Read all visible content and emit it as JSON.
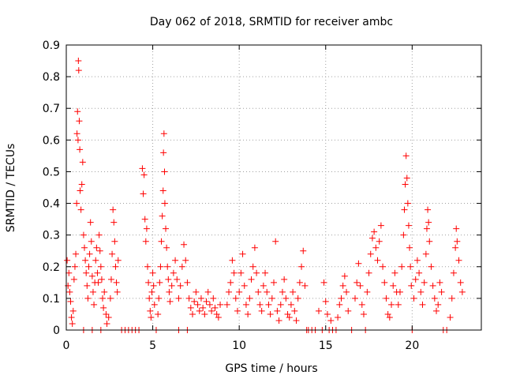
{
  "chart_data": {
    "type": "scatter",
    "title": "Day 062 of 2018, SRMTID for receiver ambc",
    "xlabel": "GPS time / hours",
    "ylabel": "SRMTID / TECUs",
    "xlim": [
      0,
      24
    ],
    "ylim": [
      0,
      0.9
    ],
    "xticks": [
      0,
      5,
      10,
      15,
      20
    ],
    "yticks": [
      0,
      0.1,
      0.2,
      0.3,
      0.4,
      0.5,
      0.6,
      0.7,
      0.8,
      0.9
    ],
    "grid": true,
    "marker": "+",
    "color": "#ff0000",
    "series": [
      {
        "name": "SRMTID",
        "points": [
          [
            0.05,
            0.22
          ],
          [
            0.1,
            0.14
          ],
          [
            0.15,
            0.18
          ],
          [
            0.2,
            0.12
          ],
          [
            0.25,
            0.09
          ],
          [
            0.3,
            0.04
          ],
          [
            0.35,
            0.02
          ],
          [
            0.4,
            0.06
          ],
          [
            0.45,
            0.16
          ],
          [
            0.5,
            0.2
          ],
          [
            0.55,
            0.24
          ],
          [
            0.6,
            0.4
          ],
          [
            0.62,
            0.62
          ],
          [
            0.65,
            0.69
          ],
          [
            0.68,
            0.6
          ],
          [
            0.7,
            0.85
          ],
          [
            0.72,
            0.82
          ],
          [
            0.75,
            0.66
          ],
          [
            0.78,
            0.57
          ],
          [
            0.8,
            0.44
          ],
          [
            0.85,
            0.38
          ],
          [
            0.9,
            0.46
          ],
          [
            0.95,
            0.53
          ],
          [
            1.0,
            0.3
          ],
          [
            1.05,
            0.26
          ],
          [
            1.1,
            0.22
          ],
          [
            1.15,
            0.18
          ],
          [
            1.2,
            0.14
          ],
          [
            1.25,
            0.1
          ],
          [
            1.3,
            0.2
          ],
          [
            1.35,
            0.24
          ],
          [
            1.4,
            0.34
          ],
          [
            1.45,
            0.28
          ],
          [
            1.5,
            0.17
          ],
          [
            1.55,
            0.12
          ],
          [
            1.6,
            0.08
          ],
          [
            1.65,
            0.15
          ],
          [
            1.7,
            0.22
          ],
          [
            1.75,
            0.26
          ],
          [
            1.8,
            0.18
          ],
          [
            1.85,
            0.15
          ],
          [
            1.9,
            0.3
          ],
          [
            1.95,
            0.25
          ],
          [
            2.0,
            0.2
          ],
          [
            2.05,
            0.16
          ],
          [
            2.1,
            0.1
          ],
          [
            2.15,
            0.07
          ],
          [
            2.2,
            0.12
          ],
          [
            2.3,
            0.05
          ],
          [
            2.35,
            0.02
          ],
          [
            2.45,
            0.04
          ],
          [
            2.55,
            0.1
          ],
          [
            2.6,
            0.16
          ],
          [
            2.65,
            0.24
          ],
          [
            2.7,
            0.38
          ],
          [
            2.75,
            0.34
          ],
          [
            2.8,
            0.28
          ],
          [
            2.85,
            0.2
          ],
          [
            2.9,
            0.15
          ],
          [
            2.95,
            0.12
          ],
          [
            3.0,
            0.22
          ],
          [
            1.0,
            0.0
          ],
          [
            1.5,
            0.0
          ],
          [
            2.0,
            0.0
          ],
          [
            3.2,
            0.0
          ],
          [
            3.4,
            0.0
          ],
          [
            3.6,
            0.0
          ],
          [
            3.8,
            0.0
          ],
          [
            4.0,
            0.0
          ],
          [
            4.2,
            0.0
          ],
          [
            4.4,
            0.51
          ],
          [
            4.45,
            0.43
          ],
          [
            4.5,
            0.49
          ],
          [
            4.55,
            0.35
          ],
          [
            4.6,
            0.28
          ],
          [
            4.65,
            0.32
          ],
          [
            4.7,
            0.2
          ],
          [
            4.75,
            0.15
          ],
          [
            4.8,
            0.1
          ],
          [
            4.85,
            0.06
          ],
          [
            4.9,
            0.04
          ],
          [
            4.95,
            0.12
          ],
          [
            5.0,
            0.18
          ],
          [
            5.05,
            0.14
          ],
          [
            5.1,
            0.08
          ],
          [
            5.2,
            0.0
          ],
          [
            5.3,
            0.05
          ],
          [
            5.35,
            0.1
          ],
          [
            5.4,
            0.15
          ],
          [
            5.45,
            0.2
          ],
          [
            5.5,
            0.28
          ],
          [
            5.55,
            0.36
          ],
          [
            5.6,
            0.44
          ],
          [
            5.62,
            0.56
          ],
          [
            5.65,
            0.62
          ],
          [
            5.68,
            0.5
          ],
          [
            5.7,
            0.4
          ],
          [
            5.75,
            0.32
          ],
          [
            5.8,
            0.26
          ],
          [
            5.85,
            0.2
          ],
          [
            5.9,
            0.16
          ],
          [
            5.95,
            0.12
          ],
          [
            6.0,
            0.09
          ],
          [
            6.1,
            0.14
          ],
          [
            6.2,
            0.18
          ],
          [
            6.3,
            0.22
          ],
          [
            6.4,
            0.16
          ],
          [
            6.5,
            0.1
          ],
          [
            6.6,
            0.14
          ],
          [
            6.7,
            0.2
          ],
          [
            6.8,
            0.27
          ],
          [
            6.9,
            0.22
          ],
          [
            7.0,
            0.15
          ],
          [
            7.1,
            0.1
          ],
          [
            7.2,
            0.07
          ],
          [
            7.3,
            0.05
          ],
          [
            7.4,
            0.09
          ],
          [
            7.5,
            0.12
          ],
          [
            7.6,
            0.08
          ],
          [
            7.7,
            0.06
          ],
          [
            7.8,
            0.1
          ],
          [
            7.9,
            0.07
          ],
          [
            8.0,
            0.05
          ],
          [
            8.1,
            0.09
          ],
          [
            8.2,
            0.12
          ],
          [
            8.3,
            0.08
          ],
          [
            8.4,
            0.06
          ],
          [
            8.5,
            0.1
          ],
          [
            8.6,
            0.07
          ],
          [
            8.7,
            0.05
          ],
          [
            8.8,
            0.04
          ],
          [
            8.9,
            0.08
          ],
          [
            6.5,
            0.0
          ],
          [
            7.0,
            0.0
          ],
          [
            9.3,
            0.08
          ],
          [
            9.4,
            0.12
          ],
          [
            9.5,
            0.15
          ],
          [
            9.6,
            0.22
          ],
          [
            9.7,
            0.18
          ],
          [
            9.8,
            0.1
          ],
          [
            9.9,
            0.06
          ],
          [
            10.0,
            0.12
          ],
          [
            10.1,
            0.18
          ],
          [
            10.2,
            0.24
          ],
          [
            10.3,
            0.14
          ],
          [
            10.4,
            0.08
          ],
          [
            10.5,
            0.05
          ],
          [
            10.6,
            0.1
          ],
          [
            10.7,
            0.16
          ],
          [
            10.8,
            0.2
          ],
          [
            10.9,
            0.26
          ],
          [
            11.0,
            0.18
          ],
          [
            11.1,
            0.12
          ],
          [
            11.2,
            0.08
          ],
          [
            11.3,
            0.06
          ],
          [
            11.4,
            0.14
          ],
          [
            11.5,
            0.18
          ],
          [
            11.6,
            0.12
          ],
          [
            11.7,
            0.08
          ],
          [
            11.8,
            0.05
          ],
          [
            11.9,
            0.1
          ],
          [
            12.0,
            0.15
          ],
          [
            12.1,
            0.28
          ],
          [
            12.2,
            0.06
          ],
          [
            12.3,
            0.03
          ],
          [
            12.4,
            0.08
          ],
          [
            12.5,
            0.12
          ],
          [
            12.6,
            0.16
          ],
          [
            12.7,
            0.1
          ],
          [
            12.8,
            0.05
          ],
          [
            12.9,
            0.04
          ],
          [
            13.0,
            0.08
          ],
          [
            13.1,
            0.12
          ],
          [
            13.2,
            0.06
          ],
          [
            13.3,
            0.03
          ],
          [
            13.4,
            0.1
          ],
          [
            13.5,
            0.15
          ],
          [
            13.6,
            0.2
          ],
          [
            13.7,
            0.25
          ],
          [
            13.8,
            0.14
          ],
          [
            13.9,
            0.0
          ],
          [
            14.0,
            0.0
          ],
          [
            14.2,
            0.0
          ],
          [
            14.4,
            0.0
          ],
          [
            14.6,
            0.06
          ],
          [
            14.8,
            0.0
          ],
          [
            14.9,
            0.15
          ],
          [
            15.0,
            0.09
          ],
          [
            15.1,
            0.05
          ],
          [
            15.2,
            0.0
          ],
          [
            15.3,
            0.03
          ],
          [
            15.4,
            0.0
          ],
          [
            15.6,
            0.0
          ],
          [
            15.7,
            0.04
          ],
          [
            15.8,
            0.08
          ],
          [
            15.9,
            0.1
          ],
          [
            16.0,
            0.14
          ],
          [
            16.1,
            0.17
          ],
          [
            16.2,
            0.12
          ],
          [
            16.3,
            0.06
          ],
          [
            16.5,
            0.0
          ],
          [
            16.7,
            0.1
          ],
          [
            16.8,
            0.15
          ],
          [
            16.9,
            0.21
          ],
          [
            17.0,
            0.14
          ],
          [
            17.1,
            0.08
          ],
          [
            17.2,
            0.05
          ],
          [
            17.3,
            0.0
          ],
          [
            17.4,
            0.12
          ],
          [
            17.5,
            0.18
          ],
          [
            17.6,
            0.24
          ],
          [
            17.7,
            0.29
          ],
          [
            17.8,
            0.31
          ],
          [
            17.9,
            0.26
          ],
          [
            18.0,
            0.22
          ],
          [
            18.1,
            0.28
          ],
          [
            18.2,
            0.33
          ],
          [
            18.3,
            0.2
          ],
          [
            18.4,
            0.15
          ],
          [
            18.5,
            0.1
          ],
          [
            18.6,
            0.05
          ],
          [
            18.7,
            0.04
          ],
          [
            18.8,
            0.08
          ],
          [
            18.9,
            0.14
          ],
          [
            19.0,
            0.18
          ],
          [
            19.1,
            0.12
          ],
          [
            19.2,
            0.08
          ],
          [
            19.3,
            0.12
          ],
          [
            19.4,
            0.2
          ],
          [
            19.5,
            0.3
          ],
          [
            19.55,
            0.38
          ],
          [
            19.6,
            0.46
          ],
          [
            19.65,
            0.55
          ],
          [
            19.7,
            0.48
          ],
          [
            19.75,
            0.4
          ],
          [
            19.8,
            0.33
          ],
          [
            19.85,
            0.26
          ],
          [
            19.9,
            0.2
          ],
          [
            19.95,
            0.14
          ],
          [
            20.0,
            0.0
          ],
          [
            20.1,
            0.1
          ],
          [
            20.2,
            0.16
          ],
          [
            20.3,
            0.22
          ],
          [
            20.4,
            0.18
          ],
          [
            20.5,
            0.12
          ],
          [
            20.6,
            0.08
          ],
          [
            20.7,
            0.15
          ],
          [
            20.8,
            0.24
          ],
          [
            20.85,
            0.32
          ],
          [
            20.9,
            0.38
          ],
          [
            20.95,
            0.34
          ],
          [
            21.0,
            0.28
          ],
          [
            21.1,
            0.2
          ],
          [
            21.2,
            0.14
          ],
          [
            21.3,
            0.1
          ],
          [
            21.4,
            0.06
          ],
          [
            21.5,
            0.08
          ],
          [
            21.6,
            0.15
          ],
          [
            21.7,
            0.12
          ],
          [
            21.8,
            0.0
          ],
          [
            22.0,
            0.0
          ],
          [
            22.2,
            0.04
          ],
          [
            22.3,
            0.1
          ],
          [
            22.4,
            0.18
          ],
          [
            22.5,
            0.26
          ],
          [
            22.55,
            0.32
          ],
          [
            22.6,
            0.28
          ],
          [
            22.7,
            0.22
          ],
          [
            22.8,
            0.15
          ],
          [
            22.9,
            0.12
          ]
        ]
      }
    ]
  }
}
